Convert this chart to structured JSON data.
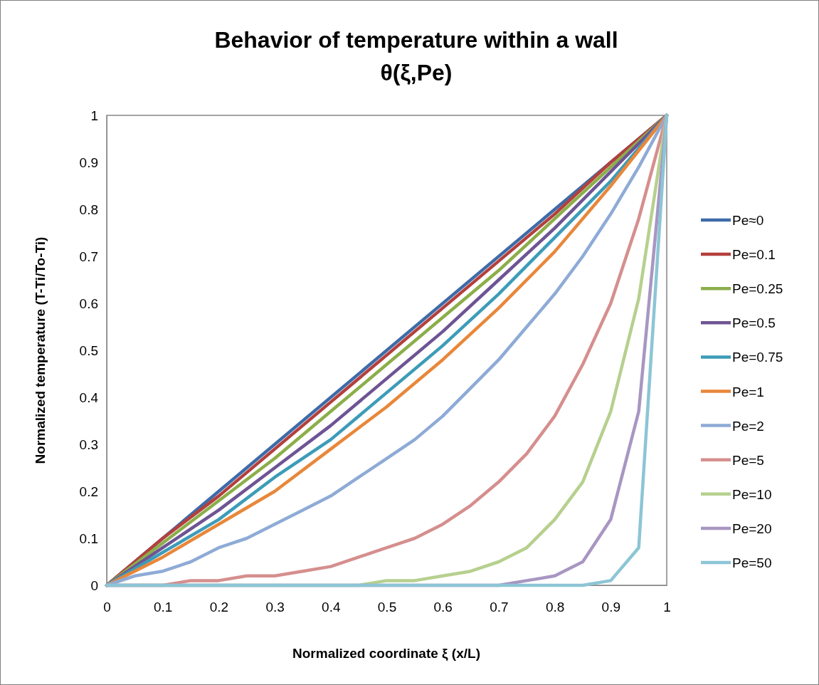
{
  "chart_data": {
    "type": "line",
    "title": "Behavior of temperature within a wall\nθ(ξ,Pe)",
    "xlabel": "Normalized coordinate ξ (x/L)",
    "ylabel": "Normalized temperature (T-Ti/To-Ti)",
    "xlim": [
      0,
      1
    ],
    "ylim": [
      0,
      1
    ],
    "xticks": [
      0,
      0.1,
      0.2,
      0.3,
      0.4,
      0.5,
      0.6,
      0.7,
      0.8,
      0.9,
      1
    ],
    "yticks": [
      0,
      0.1,
      0.2,
      0.3,
      0.4,
      0.5,
      0.6,
      0.7,
      0.8,
      0.9,
      1
    ],
    "grid": false,
    "legend": "right",
    "marker": "none",
    "line_style": "solid",
    "series": [
      {
        "name": "Pe≈0",
        "color": "#3e6ba8",
        "x": [
          0,
          1
        ],
        "values": [
          0,
          1
        ]
      },
      {
        "name": "Pe=0.1",
        "color": "#b3403d",
        "x": [
          0,
          0.1,
          0.2,
          0.3,
          0.4,
          0.5,
          0.6,
          0.7,
          0.8,
          0.9,
          1
        ],
        "values": [
          0,
          0.1,
          0.19,
          0.29,
          0.39,
          0.49,
          0.59,
          0.69,
          0.79,
          0.9,
          1
        ]
      },
      {
        "name": "Pe=0.25",
        "color": "#8cae4a",
        "x": [
          0,
          0.1,
          0.2,
          0.3,
          0.4,
          0.5,
          0.6,
          0.7,
          0.8,
          0.9,
          1
        ],
        "values": [
          0,
          0.09,
          0.18,
          0.27,
          0.37,
          0.47,
          0.57,
          0.67,
          0.78,
          0.89,
          1
        ]
      },
      {
        "name": "Pe=0.5",
        "color": "#6e5494",
        "x": [
          0,
          0.1,
          0.2,
          0.3,
          0.4,
          0.5,
          0.6,
          0.7,
          0.8,
          0.9,
          1
        ],
        "values": [
          0,
          0.08,
          0.16,
          0.25,
          0.34,
          0.44,
          0.54,
          0.65,
          0.76,
          0.88,
          1
        ]
      },
      {
        "name": "Pe=0.75",
        "color": "#3d9cb8",
        "x": [
          0,
          0.1,
          0.2,
          0.3,
          0.4,
          0.5,
          0.6,
          0.7,
          0.8,
          0.9,
          1
        ],
        "values": [
          0,
          0.07,
          0.14,
          0.23,
          0.31,
          0.41,
          0.51,
          0.62,
          0.74,
          0.86,
          1
        ]
      },
      {
        "name": "Pe=1",
        "color": "#e8873a",
        "x": [
          0,
          0.1,
          0.2,
          0.3,
          0.4,
          0.5,
          0.6,
          0.7,
          0.8,
          0.9,
          1
        ],
        "values": [
          0,
          0.06,
          0.13,
          0.2,
          0.29,
          0.38,
          0.48,
          0.59,
          0.71,
          0.85,
          1
        ]
      },
      {
        "name": "Pe=2",
        "color": "#8eabd6",
        "x": [
          0,
          0.05,
          0.1,
          0.15,
          0.2,
          0.25,
          0.3,
          0.35,
          0.4,
          0.45,
          0.5,
          0.55,
          0.6,
          0.65,
          0.7,
          0.75,
          0.8,
          0.85,
          0.9,
          0.95,
          1
        ],
        "values": [
          0,
          0.02,
          0.03,
          0.05,
          0.08,
          0.1,
          0.13,
          0.16,
          0.19,
          0.23,
          0.27,
          0.31,
          0.36,
          0.42,
          0.48,
          0.55,
          0.62,
          0.7,
          0.79,
          0.89,
          1
        ]
      },
      {
        "name": "Pe=5",
        "color": "#d58f8e",
        "x": [
          0,
          0.05,
          0.1,
          0.15,
          0.2,
          0.25,
          0.3,
          0.35,
          0.4,
          0.45,
          0.5,
          0.55,
          0.6,
          0.65,
          0.7,
          0.75,
          0.8,
          0.85,
          0.9,
          0.95,
          1
        ],
        "values": [
          0,
          0.0,
          0.0,
          0.01,
          0.01,
          0.02,
          0.02,
          0.03,
          0.04,
          0.06,
          0.08,
          0.1,
          0.13,
          0.17,
          0.22,
          0.28,
          0.36,
          0.47,
          0.6,
          0.78,
          1
        ]
      },
      {
        "name": "Pe=10",
        "color": "#b6d08e",
        "x": [
          0,
          0.05,
          0.1,
          0.15,
          0.2,
          0.25,
          0.3,
          0.35,
          0.4,
          0.45,
          0.5,
          0.55,
          0.6,
          0.65,
          0.7,
          0.75,
          0.8,
          0.85,
          0.9,
          0.95,
          1
        ],
        "values": [
          0,
          0,
          0,
          0,
          0,
          0,
          0,
          0,
          0,
          0,
          0.01,
          0.01,
          0.02,
          0.03,
          0.05,
          0.08,
          0.14,
          0.22,
          0.37,
          0.61,
          1
        ]
      },
      {
        "name": "Pe=20",
        "color": "#a896c2",
        "x": [
          0,
          0.05,
          0.1,
          0.15,
          0.2,
          0.25,
          0.3,
          0.35,
          0.4,
          0.45,
          0.5,
          0.55,
          0.6,
          0.65,
          0.7,
          0.75,
          0.8,
          0.85,
          0.9,
          0.95,
          1
        ],
        "values": [
          0,
          0,
          0,
          0,
          0,
          0,
          0,
          0,
          0,
          0,
          0,
          0,
          0,
          0,
          0,
          0.01,
          0.02,
          0.05,
          0.14,
          0.37,
          1
        ]
      },
      {
        "name": "Pe=50",
        "color": "#8cc5d6",
        "x": [
          0,
          0.05,
          0.1,
          0.15,
          0.2,
          0.25,
          0.3,
          0.35,
          0.4,
          0.45,
          0.5,
          0.55,
          0.6,
          0.65,
          0.7,
          0.75,
          0.8,
          0.85,
          0.9,
          0.95,
          1
        ],
        "values": [
          0,
          0,
          0,
          0,
          0,
          0,
          0,
          0,
          0,
          0,
          0,
          0,
          0,
          0,
          0,
          0,
          0,
          0,
          0.01,
          0.08,
          1
        ]
      }
    ]
  }
}
